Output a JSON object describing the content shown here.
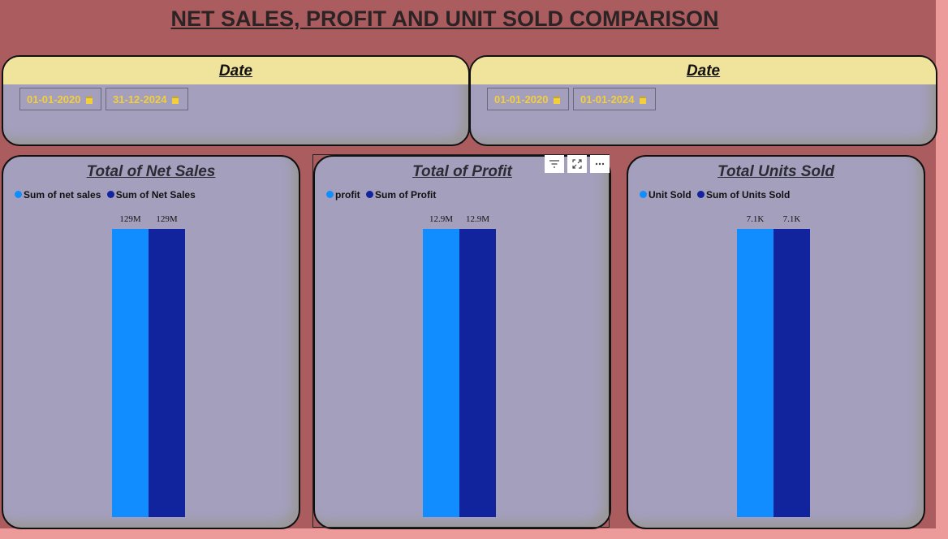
{
  "page": {
    "title": "NET SALES, PROFIT AND UNIT SOLD COMPARISON "
  },
  "slicers": [
    {
      "header": "Date",
      "start_date": "01-01-2020",
      "end_date": "31-12-2024",
      "icon": "calendar-icon"
    },
    {
      "header": "Date",
      "start_date": "01-01-2020",
      "end_date": "01-01-2024",
      "icon": "calendar-icon"
    }
  ],
  "colors": {
    "series_a": "#118dff",
    "series_b": "#12239e"
  },
  "visual_toolbar": {
    "icons": [
      "filter-icon",
      "focus-mode-icon",
      "more-options-icon"
    ]
  },
  "chart_data": [
    {
      "type": "bar",
      "title": "Total of Net Sales",
      "series": [
        {
          "name": "Sum of net sales",
          "values": [
            129000000
          ],
          "label": "129M"
        },
        {
          "name": "Sum of Net Sales",
          "values": [
            129000000
          ],
          "label": "129M"
        }
      ],
      "legend": "top-left",
      "grid": false
    },
    {
      "type": "bar",
      "title": "Total of Profit",
      "series": [
        {
          "name": "profit",
          "values": [
            12900000
          ],
          "label": "12.9M"
        },
        {
          "name": "Sum of Profit",
          "values": [
            12900000
          ],
          "label": "12.9M"
        }
      ],
      "legend": "top-left",
      "grid": false
    },
    {
      "type": "bar",
      "title": "Total Units Sold",
      "series": [
        {
          "name": "Unit Sold",
          "values": [
            7100
          ],
          "label": "7.1K"
        },
        {
          "name": "Sum of Units Sold",
          "values": [
            7100
          ],
          "label": "7.1K"
        }
      ],
      "legend": "top-left",
      "grid": false
    }
  ]
}
